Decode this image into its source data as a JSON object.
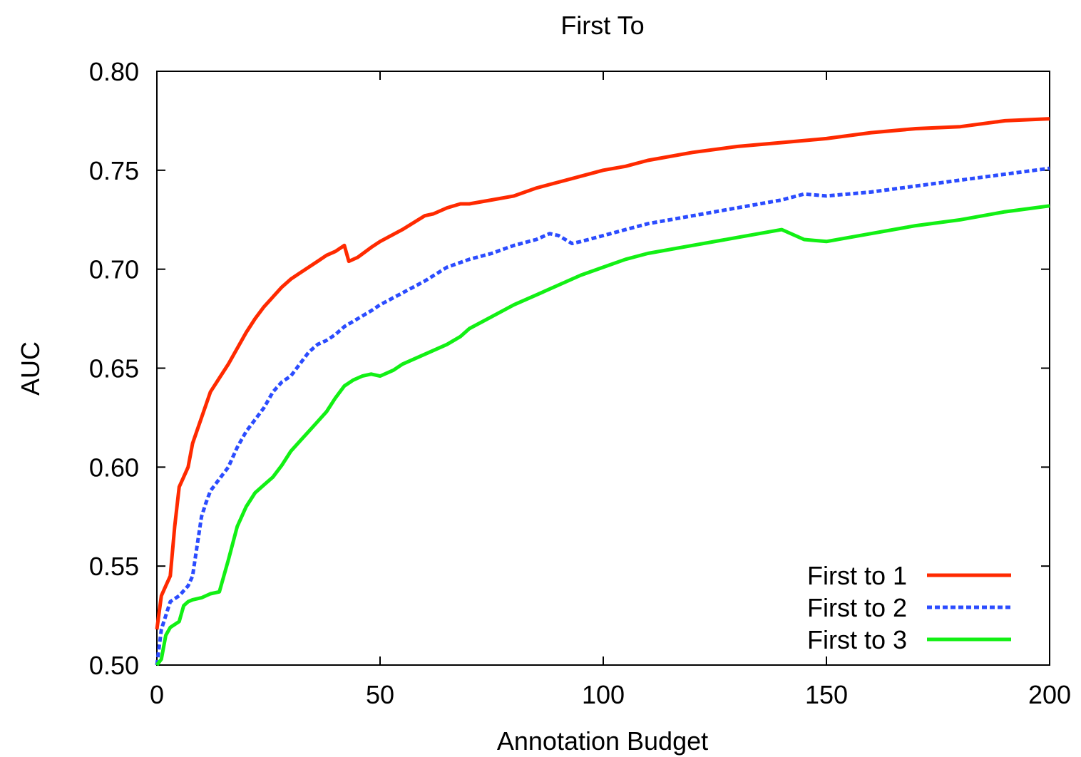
{
  "chart_data": {
    "type": "line",
    "title": "First To",
    "xlabel": "Annotation Budget",
    "ylabel": "AUC",
    "xlim": [
      0,
      200
    ],
    "ylim": [
      0.5,
      0.8
    ],
    "xticks": [
      0,
      50,
      100,
      150,
      200
    ],
    "xtick_labels": [
      "0",
      "50",
      "100",
      "150",
      "200"
    ],
    "yticks": [
      0.5,
      0.55,
      0.6,
      0.65,
      0.7,
      0.75,
      0.8
    ],
    "ytick_labels": [
      "0.50",
      "0.55",
      "0.60",
      "0.65",
      "0.70",
      "0.75",
      "0.80"
    ],
    "grid": false,
    "legend_position": "bottom-right",
    "series": [
      {
        "name": "First to 1",
        "color": "#ff2a00",
        "style": "solid",
        "x": [
          0,
          1,
          2,
          3,
          4,
          5,
          6,
          7,
          8,
          10,
          12,
          14,
          16,
          18,
          20,
          22,
          24,
          26,
          28,
          30,
          32,
          34,
          36,
          38,
          40,
          42,
          43,
          45,
          48,
          50,
          55,
          60,
          62,
          65,
          68,
          70,
          75,
          80,
          85,
          90,
          95,
          100,
          105,
          110,
          120,
          130,
          140,
          150,
          160,
          170,
          180,
          190,
          200
        ],
        "y": [
          0.518,
          0.535,
          0.54,
          0.545,
          0.57,
          0.59,
          0.595,
          0.6,
          0.612,
          0.625,
          0.638,
          0.645,
          0.652,
          0.66,
          0.668,
          0.675,
          0.681,
          0.686,
          0.691,
          0.695,
          0.698,
          0.701,
          0.704,
          0.707,
          0.709,
          0.712,
          0.704,
          0.706,
          0.711,
          0.714,
          0.72,
          0.727,
          0.728,
          0.731,
          0.733,
          0.733,
          0.735,
          0.737,
          0.741,
          0.744,
          0.747,
          0.75,
          0.752,
          0.755,
          0.759,
          0.762,
          0.764,
          0.766,
          0.769,
          0.771,
          0.772,
          0.775,
          0.776
        ]
      },
      {
        "name": "First to 2",
        "color": "#2b4cff",
        "style": "dashed",
        "x": [
          0,
          1,
          2,
          3,
          5,
          7,
          8,
          9,
          10,
          11,
          12,
          14,
          16,
          18,
          20,
          22,
          24,
          26,
          28,
          30,
          32,
          34,
          36,
          38,
          40,
          42,
          45,
          48,
          50,
          55,
          60,
          65,
          70,
          75,
          80,
          85,
          88,
          90,
          93,
          95,
          100,
          105,
          110,
          120,
          130,
          140,
          145,
          150,
          160,
          170,
          180,
          190,
          200
        ],
        "y": [
          0.5,
          0.518,
          0.525,
          0.532,
          0.535,
          0.54,
          0.545,
          0.56,
          0.575,
          0.582,
          0.588,
          0.594,
          0.6,
          0.61,
          0.618,
          0.624,
          0.63,
          0.638,
          0.643,
          0.646,
          0.652,
          0.658,
          0.662,
          0.664,
          0.667,
          0.671,
          0.675,
          0.679,
          0.682,
          0.688,
          0.694,
          0.701,
          0.705,
          0.708,
          0.712,
          0.715,
          0.718,
          0.717,
          0.713,
          0.714,
          0.717,
          0.72,
          0.723,
          0.727,
          0.731,
          0.735,
          0.738,
          0.737,
          0.739,
          0.742,
          0.745,
          0.748,
          0.751
        ]
      },
      {
        "name": "First to 3",
        "color": "#12f014",
        "style": "solid",
        "x": [
          0,
          1,
          2,
          3,
          5,
          6,
          7,
          8,
          10,
          12,
          14,
          15,
          16,
          18,
          20,
          22,
          24,
          26,
          28,
          30,
          32,
          34,
          36,
          38,
          40,
          42,
          44,
          46,
          48,
          50,
          53,
          55,
          60,
          65,
          68,
          70,
          75,
          80,
          85,
          90,
          95,
          100,
          105,
          110,
          120,
          130,
          140,
          145,
          150,
          160,
          170,
          180,
          190,
          200
        ],
        "y": [
          0.5,
          0.503,
          0.515,
          0.519,
          0.522,
          0.53,
          0.532,
          0.533,
          0.534,
          0.536,
          0.537,
          0.545,
          0.553,
          0.57,
          0.58,
          0.587,
          0.591,
          0.595,
          0.601,
          0.608,
          0.613,
          0.618,
          0.623,
          0.628,
          0.635,
          0.641,
          0.644,
          0.646,
          0.647,
          0.646,
          0.649,
          0.652,
          0.657,
          0.662,
          0.666,
          0.67,
          0.676,
          0.682,
          0.687,
          0.692,
          0.697,
          0.701,
          0.705,
          0.708,
          0.712,
          0.716,
          0.72,
          0.715,
          0.714,
          0.718,
          0.722,
          0.725,
          0.729,
          0.732
        ]
      }
    ]
  }
}
